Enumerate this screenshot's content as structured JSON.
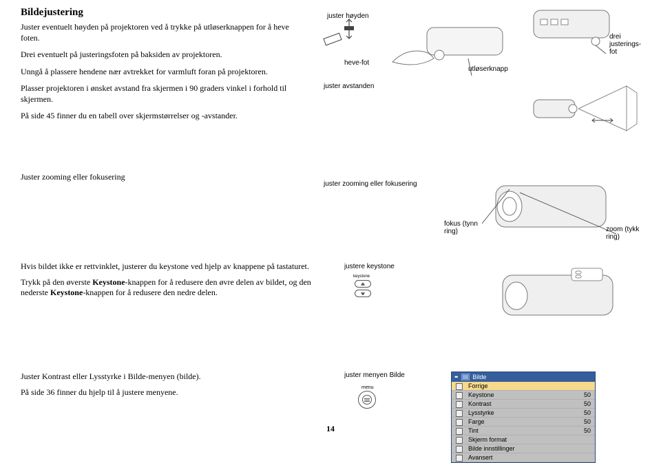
{
  "heading": "Bildejustering",
  "section1": {
    "p1": "Juster eventuelt høyden på projektoren ved å trykke på utløserknappen for å heve foten.",
    "p2": "Drei eventuelt på justeringsfoten på baksiden av projektoren.",
    "p3": "Unngå å plassere hendene nær avtrekket for varmluft foran på projektoren.",
    "p4": "Plasser projektoren i ønsket avstand fra skjermen i 90 graders vinkel i forhold til skjermen.",
    "p5": "På side 45 finner du en tabell over skjermstørrelser og -avstander.",
    "labels": {
      "adjust_height": "juster høyden",
      "lift_foot": "heve-fot",
      "adjust_distance": "juster avstanden",
      "release_button": "utløserknapp",
      "turn_foot": "drei justerings-fot"
    }
  },
  "section2": {
    "heading": "Juster zooming eller fokusering",
    "caption": "juster zooming eller fokusering",
    "focus_label": "fokus (tynn ring)",
    "zoom_label": "zoom (tykk ring)"
  },
  "section3": {
    "p1": "Hvis bildet ikke er rettvinklet, justerer du keystone ved hjelp av knappene på tastaturet.",
    "p2_a": "Trykk på den øverste ",
    "p2_b": "Keystone",
    "p2_c": "-knappen for å redusere den øvre delen av bildet, og den nederste ",
    "p2_d": "Keystone",
    "p2_e": "-knappen for å redusere den nedre delen.",
    "caption": "justere keystone",
    "btn_label": "keystone"
  },
  "section4": {
    "p1": "Juster Kontrast eller Lysstyrke i Bilde-menyen (bilde).",
    "p2": "På side 36 finner du hjelp til å justere menyene.",
    "caption": "juster menyen Bilde",
    "ring_label": "menu",
    "menu": {
      "title": "Bilde",
      "rows": [
        {
          "label": "Forrige",
          "value": "",
          "highlight": true
        },
        {
          "label": "Keystone",
          "value": "50"
        },
        {
          "label": "Kontrast",
          "value": "50"
        },
        {
          "label": "Lysstyrke",
          "value": "50"
        },
        {
          "label": "Farge",
          "value": "50"
        },
        {
          "label": "Tint",
          "value": "50"
        },
        {
          "label": "Skjerm format",
          "value": ""
        },
        {
          "label": "Bilde innstillinger",
          "value": ""
        },
        {
          "label": "Avansert",
          "value": ""
        }
      ]
    }
  },
  "page_number": "14",
  "colors": {
    "menu_bg": "#375e9c",
    "menu_row_bg": "#c0c0c0",
    "menu_highlight": "#f7d98c"
  }
}
